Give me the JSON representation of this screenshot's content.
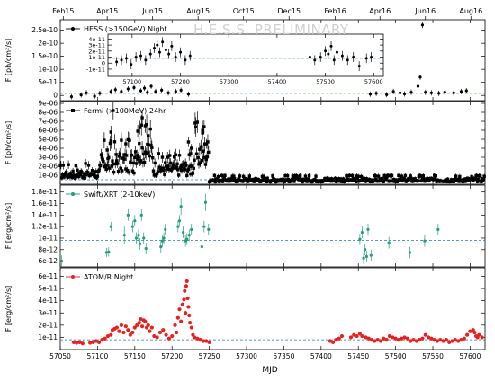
{
  "watermark": "H.E.S.S. PRELIMINARY",
  "xlabel": "MJD",
  "top_axis": {
    "labels": [
      "Feb15",
      "Apr15",
      "Jun15",
      "Aug15",
      "Oct15",
      "Dec15",
      "Feb16",
      "Apr16",
      "Jun16",
      "Aug16"
    ],
    "mjd": [
      57054,
      57113,
      57174,
      57235,
      57296,
      57357,
      57419,
      57479,
      57540,
      57601
    ]
  },
  "colors": {
    "hess": "#000000",
    "fermi": "#000000",
    "swift": "#1e9e7a",
    "atom": "#e8211f",
    "baseline": "#1f77b4"
  },
  "chart_data": [
    {
      "type": "scatter",
      "panel": "hess",
      "ylabel": "F [ph/cm²/s]",
      "legend": "HESS (>150GeV) Night",
      "xlim": [
        57050,
        57620
      ],
      "ylim": [
        -2e-11,
        2.9e-10
      ],
      "yticks": [
        0,
        5e-11,
        1e-10,
        1.5e-10,
        2e-10,
        2.5e-10
      ],
      "yticklabels": [
        "0",
        "5e-11",
        "1e-10",
        "1.5e-10",
        "2e-10",
        "2.5e-10"
      ],
      "xticks": [
        57050,
        57100,
        57150,
        57200,
        57250,
        57300,
        57350,
        57400,
        57450,
        57500,
        57550,
        57600
      ],
      "xticklabels": [],
      "baseline": 8e-12,
      "x": [
        57065,
        57078,
        57085,
        57096,
        57103,
        57118,
        57124,
        57132,
        57141,
        57149,
        57158,
        57163,
        57167,
        57172,
        57178,
        57186,
        57195,
        57205,
        57212,
        57222,
        57466,
        57474,
        57488,
        57497,
        57506,
        57512,
        57521,
        57530,
        57533,
        57536,
        57540,
        57548,
        57558,
        57566,
        57578,
        57588,
        57595
      ],
      "y": [
        -5e-12,
        2e-12,
        1e-11,
        -3e-12,
        8e-12,
        1.5e-11,
        2.2e-11,
        1.5e-11,
        2.5e-11,
        3e-11,
        1.8e-11,
        2.8e-11,
        1.2e-11,
        3.5e-11,
        1.5e-11,
        2e-11,
        1e-11,
        1.5e-11,
        2e-11,
        5e-12,
        5e-12,
        8e-12,
        3e-12,
        1.5e-11,
        1e-11,
        6e-12,
        1.2e-11,
        3.5e-11,
        7e-11,
        2.7e-10,
        1.2e-11,
        1e-11,
        8e-12,
        1.2e-11,
        1e-11,
        1.5e-11,
        1.8e-11
      ],
      "yerr": [
        1e-11,
        1e-11,
        1e-11,
        1e-11,
        1e-11,
        1e-11,
        1e-11,
        1e-11,
        1e-11,
        1e-11,
        1e-11,
        1e-11,
        1e-11,
        1e-11,
        1e-11,
        1e-11,
        1e-11,
        1e-11,
        1e-11,
        1e-11,
        1e-11,
        1e-11,
        1e-11,
        1e-11,
        1e-11,
        1e-11,
        1e-11,
        1e-11,
        1e-11,
        1.2e-11,
        1e-11,
        1e-11,
        1e-11,
        1e-11,
        1e-11,
        1e-11,
        1e-11
      ]
    },
    {
      "type": "scatter",
      "panel": "hess-inset",
      "xlim": [
        57050,
        57620
      ],
      "ylim": [
        -2.2e-11,
        4.8e-11
      ],
      "xticks": [
        57100,
        57200,
        57300,
        57400,
        57500,
        57600
      ],
      "xticklabels": [
        "57100",
        "57200",
        "57300",
        "57400",
        "57500",
        "57600"
      ],
      "yticks": [
        -1e-11,
        0,
        1e-11,
        2e-11,
        3e-11,
        4e-11
      ],
      "yticklabels": [
        "-1e-11",
        "0",
        "1e-11",
        "2e-11",
        "3e-11",
        "4e-11"
      ],
      "baseline": 8e-12,
      "x": [
        57068,
        57078,
        57088,
        57098,
        57108,
        57118,
        57128,
        57138,
        57146,
        57152,
        57157,
        57163,
        57170,
        57176,
        57182,
        57190,
        57200,
        57210,
        57220,
        57468,
        57478,
        57490,
        57500,
        57506,
        57512,
        57518,
        57524,
        57535,
        57546,
        57558,
        57570,
        57585,
        57595
      ],
      "y": [
        2e-12,
        5e-12,
        8e-12,
        -2e-12,
        1e-11,
        1.2e-11,
        5e-12,
        1.5e-11,
        2.5e-11,
        3e-11,
        1.8e-11,
        3.5e-11,
        2.2e-11,
        1.5e-11,
        2.8e-11,
        1e-11,
        1.8e-11,
        5e-12,
        1.2e-11,
        1e-11,
        5e-12,
        1e-11,
        2e-11,
        1.5e-11,
        2.8e-11,
        5e-12,
        1.8e-11,
        1.2e-11,
        5e-12,
        1e-11,
        -5e-12,
        8e-12,
        1e-11
      ],
      "yerr": [
        8e-12,
        8e-12,
        8e-12,
        8e-12,
        8e-12,
        8e-12,
        8e-12,
        8e-12,
        8e-12,
        8e-12,
        8e-12,
        8e-12,
        8e-12,
        8e-12,
        8e-12,
        8e-12,
        8e-12,
        8e-12,
        8e-12,
        8e-12,
        8e-12,
        8e-12,
        8e-12,
        8e-12,
        8e-12,
        8e-12,
        8e-12,
        8e-12,
        8e-12,
        8e-12,
        8e-12,
        8e-12,
        8e-12
      ]
    },
    {
      "type": "scatter",
      "panel": "fermi",
      "ylabel": "F [ph/cm²/s]",
      "legend": "Fermi (>100MeV) 24hr",
      "xlim": [
        57050,
        57620
      ],
      "ylim": [
        0,
        9.2e-06
      ],
      "yticks": [
        1e-06,
        2e-06,
        3e-06,
        4e-06,
        5e-06,
        6e-06,
        7e-06,
        8e-06,
        9e-06
      ],
      "yticklabels": [
        "1e-06",
        "2e-06",
        "3e-06",
        "4e-06",
        "5e-06",
        "6e-06",
        "7e-06",
        "8e-06",
        "9e-06"
      ],
      "xticks": [
        57050,
        57100,
        57150,
        57200,
        57250,
        57300,
        57350,
        57400,
        57450,
        57500,
        57550,
        57600
      ],
      "xticklabels": [],
      "baseline": 5e-07,
      "segments": [
        {
          "x0": 57050,
          "x1": 57105,
          "base": 1.2e-06,
          "spread": 8e-07
        },
        {
          "x0": 57105,
          "x1": 57150,
          "base": 2.5e-06,
          "spread": 1.8e-06
        },
        {
          "x0": 57150,
          "x1": 57175,
          "base": 3.8e-06,
          "spread": 2.2e-06
        },
        {
          "x0": 57175,
          "x1": 57230,
          "base": 1.8e-06,
          "spread": 1.2e-06
        },
        {
          "x0": 57230,
          "x1": 57250,
          "base": 3.5e-06,
          "spread": 2.5e-06
        },
        {
          "x0": 57250,
          "x1": 57620,
          "base": 5e-07,
          "spread": 3.5e-07
        }
      ],
      "peaks": [
        {
          "x": 57121,
          "y": 8.2e-06
        },
        {
          "x": 57118,
          "y": 5.8e-06
        },
        {
          "x": 57160,
          "y": 7.4e-06
        },
        {
          "x": 57157,
          "y": 6.3e-06
        },
        {
          "x": 57164,
          "y": 6.5e-06
        },
        {
          "x": 57154,
          "y": 5.9e-06
        },
        {
          "x": 57168,
          "y": 5.4e-06
        },
        {
          "x": 57138,
          "y": 4.5e-06
        },
        {
          "x": 57243,
          "y": 6.4e-06
        },
        {
          "x": 57241,
          "y": 5.7e-06
        },
        {
          "x": 57246,
          "y": 4.5e-06
        },
        {
          "x": 57222,
          "y": 4.7e-06
        },
        {
          "x": 57226,
          "y": 4e-06
        },
        {
          "x": 57225,
          "y": 3.4e-06
        },
        {
          "x": 57113,
          "y": 3.8e-06
        }
      ]
    },
    {
      "type": "scatter",
      "panel": "swift",
      "ylabel": "F [erg/cm²/s]",
      "legend": "Swift/XRT (2-10keV)",
      "xlim": [
        57050,
        57620
      ],
      "ylim": [
        5e-12,
        1.92e-11
      ],
      "yticks": [
        6e-12,
        8e-12,
        1e-11,
        1.2e-11,
        1.4e-11,
        1.6e-11,
        1.8e-11
      ],
      "yticklabels": [
        "6e-12",
        "8e-12",
        "1e-11",
        "1.2e-11",
        "1.4e-11",
        "1.6e-11",
        "1.8e-11"
      ],
      "xticks": [
        57050,
        57100,
        57150,
        57200,
        57250,
        57300,
        57350,
        57400,
        57450,
        57500,
        57550,
        57600
      ],
      "xticklabels": [],
      "baseline": 9.6e-12,
      "x": [
        57052,
        57112,
        57115,
        57118,
        57136,
        57141,
        57147,
        57150,
        57152,
        57155,
        57157,
        57159,
        57162,
        57165,
        57185,
        57187,
        57189,
        57191,
        57208,
        57210,
        57212,
        57215,
        57218,
        57220,
        57223,
        57226,
        57240,
        57243,
        57245,
        57249,
        57452,
        57455,
        57457,
        57459,
        57461,
        57463,
        57467,
        57491,
        57519,
        57539,
        57557
      ],
      "y": [
        6e-12,
        7.5e-12,
        7.6e-12,
        1.2e-11,
        1.05e-11,
        1.4e-11,
        1.2e-11,
        1.3e-11,
        1e-11,
        1.05e-11,
        9e-12,
        1.4e-11,
        1e-11,
        8.2e-12,
        8.5e-12,
        9.5e-12,
        1e-11,
        1.15e-11,
        1.2e-11,
        1.3e-11,
        1.55e-11,
        1.1e-11,
        9.5e-12,
        9.8e-12,
        1.05e-11,
        1.15e-11,
        8.5e-12,
        1.2e-11,
        1.62e-11,
        1.15e-11,
        9.8e-12,
        1.1e-11,
        6.5e-12,
        8e-12,
        6.8e-12,
        1.15e-11,
        7e-12,
        9.2e-12,
        7.5e-12,
        9.5e-12,
        1.15e-11
      ],
      "yerr": [
        1e-12,
        8e-13,
        8e-13,
        8e-13,
        1.5e-12,
        1e-12,
        1e-12,
        1e-12,
        1e-12,
        1e-12,
        1e-12,
        1e-12,
        1e-12,
        1e-12,
        1e-12,
        1e-12,
        1e-12,
        1e-12,
        1e-12,
        1e-12,
        1.5e-12,
        1e-12,
        1e-12,
        1e-12,
        1e-12,
        1e-12,
        1e-12,
        1e-12,
        1.5e-12,
        1e-12,
        1e-12,
        1e-12,
        1e-12,
        1e-12,
        1e-12,
        1e-12,
        1e-12,
        1e-12,
        1e-12,
        1e-12,
        1e-12
      ]
    },
    {
      "type": "scatter",
      "panel": "atom",
      "ylabel": "F [erg/cm²/s]",
      "legend": "ATOM/R Night",
      "xlim": [
        57050,
        57620
      ],
      "ylim": [
        0,
        6.7e-11
      ],
      "yticks": [
        1e-11,
        2e-11,
        3e-11,
        4e-11,
        5e-11,
        6e-11
      ],
      "yticklabels": [
        "1e-11",
        "2e-11",
        "3e-11",
        "4e-11",
        "5e-11",
        "6e-11"
      ],
      "xticks": [
        57050,
        57100,
        57150,
        57200,
        57250,
        57300,
        57350,
        57400,
        57450,
        57500,
        57550,
        57600
      ],
      "xticklabels": [
        "57050",
        "57100",
        "57150",
        "57200",
        "57250",
        "57300",
        "57350",
        "57400",
        "57450",
        "57500",
        "57550",
        "57600"
      ],
      "baseline": 8e-12,
      "x": [
        57068,
        57072,
        57076,
        57080,
        57090,
        57094,
        57098,
        57102,
        57106,
        57110,
        57114,
        57118,
        57120,
        57123,
        57126,
        57129,
        57132,
        57135,
        57138,
        57141,
        57144,
        57147,
        57150,
        57153,
        57156,
        57158,
        57160,
        57162,
        57164,
        57166,
        57168,
        57170,
        57173,
        57176,
        57180,
        57184,
        57188,
        57192,
        57196,
        57200,
        57204,
        57206,
        57208,
        57210,
        57212,
        57214,
        57216,
        57217,
        57218,
        57219,
        57220,
        57221,
        57222,
        57223,
        57224,
        57226,
        57228,
        57230,
        57234,
        57238,
        57242,
        57246,
        57250,
        57412,
        57416,
        57420,
        57424,
        57428,
        57440,
        57444,
        57448,
        57452,
        57455,
        57460,
        57464,
        57468,
        57472,
        57476,
        57480,
        57484,
        57488,
        57492,
        57496,
        57500,
        57504,
        57508,
        57512,
        57516,
        57520,
        57524,
        57528,
        57532,
        57536,
        57540,
        57544,
        57548,
        57552,
        57556,
        57560,
        57564,
        57568,
        57572,
        57576,
        57580,
        57584,
        57588,
        57592,
        57596,
        57600,
        57604,
        57606,
        57608,
        57610,
        57612,
        57616
      ],
      "y": [
        6e-12,
        5.5e-12,
        6e-12,
        5e-12,
        5.5e-12,
        6e-12,
        7e-12,
        6e-12,
        8e-12,
        9e-12,
        1.1e-11,
        1.2e-11,
        1.6e-11,
        1.7e-11,
        1.8e-11,
        1.5e-11,
        2e-11,
        1.4e-11,
        1.9e-11,
        1.6e-11,
        1.2e-11,
        1.4e-11,
        1.8e-11,
        2e-11,
        2.2e-11,
        2.5e-11,
        1.9e-11,
        2.4e-11,
        2.3e-11,
        1.8e-11,
        2e-11,
        1.5e-11,
        1.8e-11,
        1.1e-11,
        1e-11,
        1.4e-11,
        1.6e-11,
        1.2e-11,
        9e-12,
        1.1e-11,
        2e-11,
        1.4e-11,
        2.6e-11,
        3.3e-11,
        2.3e-11,
        3.7e-11,
        4.1e-11,
        4.8e-11,
        3e-11,
        5.2e-11,
        5.6e-11,
        4.2e-11,
        3.5e-11,
        2.8e-11,
        2.2e-11,
        1.8e-11,
        1.2e-11,
        1e-11,
        9e-12,
        8e-12,
        7e-12,
        7e-12,
        6e-12,
        7e-12,
        6e-12,
        8e-12,
        9e-12,
        1.1e-11,
        1e-11,
        1.2e-11,
        1.1e-11,
        1.3e-11,
        1.1e-11,
        1e-11,
        9e-12,
        8e-12,
        7e-12,
        8e-12,
        7e-12,
        9e-12,
        8e-12,
        1.1e-11,
        1e-11,
        9e-12,
        8e-12,
        9e-12,
        1e-11,
        9e-12,
        7e-12,
        8e-12,
        7e-12,
        8e-12,
        9e-12,
        1.2e-11,
        1e-11,
        9e-12,
        8e-12,
        7e-12,
        8e-12,
        7e-12,
        8e-12,
        6e-12,
        7e-12,
        8e-12,
        7e-12,
        8e-12,
        9e-12,
        1.2e-11,
        1.5e-11,
        1.6e-11,
        1.4e-11,
        1.1e-11,
        1e-11,
        1.2e-11,
        1e-11
      ]
    }
  ]
}
